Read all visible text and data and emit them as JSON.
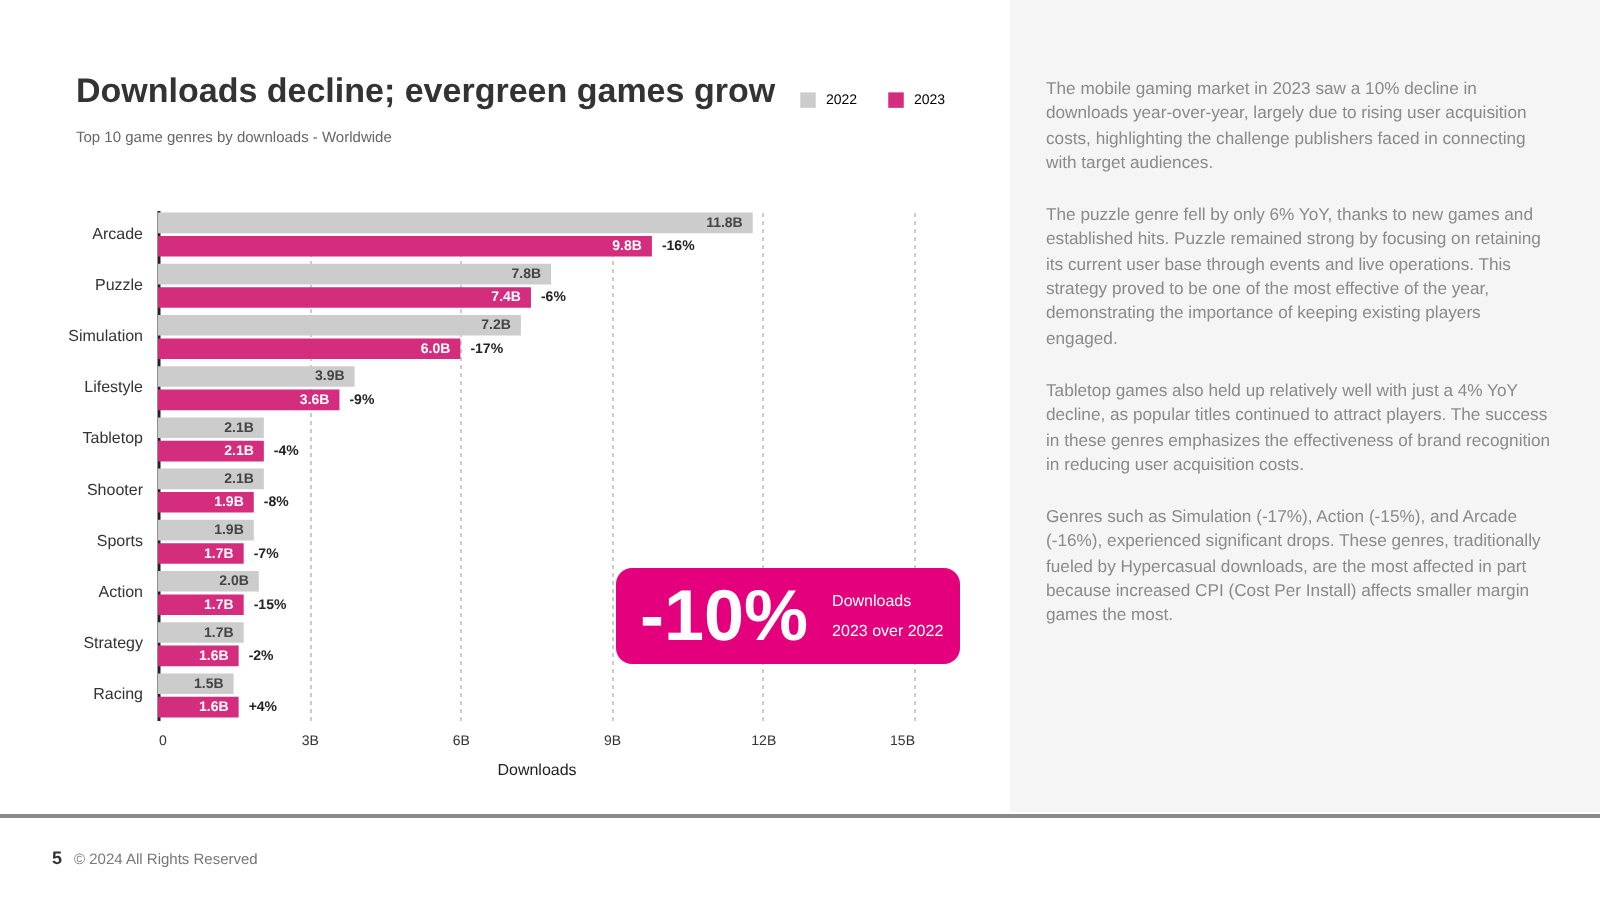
{
  "chart_data": {
    "type": "bar",
    "orientation": "horizontal",
    "title": "Downloads decline; evergreen games grow",
    "subtitle": "Top 10 game genres by downloads - Worldwide",
    "xlabel": "Downloads",
    "categories": [
      "Arcade",
      "Puzzle",
      "Simulation",
      "Lifestyle",
      "Tabletop",
      "Shooter",
      "Sports",
      "Action",
      "Strategy",
      "Racing"
    ],
    "series": [
      {
        "name": "2022",
        "color": "#cccccc",
        "values": [
          11.8,
          7.8,
          7.2,
          3.9,
          2.1,
          2.1,
          1.9,
          2.0,
          1.7,
          1.5
        ],
        "value_labels": [
          "11.8B",
          "7.8B",
          "7.2B",
          "3.9B",
          "2.1B",
          "2.1B",
          "1.9B",
          "2.0B",
          "1.7B",
          "1.5B"
        ]
      },
      {
        "name": "2023",
        "color": "#d42d7e",
        "values": [
          9.8,
          7.4,
          6.0,
          3.6,
          2.1,
          1.9,
          1.7,
          1.7,
          1.6,
          1.6
        ],
        "value_labels": [
          "9.8B",
          "7.4B",
          "6.0B",
          "3.6B",
          "2.1B",
          "1.9B",
          "1.7B",
          "1.7B",
          "1.6B",
          "1.6B"
        ]
      }
    ],
    "xlim": [
      0,
      15
    ],
    "xticks": [
      0,
      {
        "value": 3,
        "label": "3B"
      },
      {
        "value": 6,
        "label": "6B"
      },
      {
        "value": 9,
        "label": "9B"
      },
      {
        "value": 12,
        "label": "12B"
      },
      {
        "value": 15,
        "label": "15B"
      }
    ],
    "grid": "x",
    "legend": "top right",
    "annotations": [
      "-10%",
      "Downloads",
      "2023 over 2022",
      "The mobile gaming market in 2023 saw a 10% decline in downloads year-over-year, largely due to rising user acquisition costs, highlighting the challenge publishers faced in connecting with target audiences.",
      "The puzzle genre fell by only 6% YoY, thanks to new games and established hits. Puzzle remained strong by focusing on retaining its current user base through events and live operations. This strategy proved to be one of the most effective of the year, demonstrating the importance of keeping existing players engaged.",
      "Tabletop games also held up relatively well with just a 4% YoY decline, as popular titles continued to attract players. The success in these genres emphasizes the effectiveness of brand recognition in reducing user acquisition costs.",
      "Genres such as Simulation (-17%), Action (-15%), and Arcade (-16%), experienced significant drops. These genres, traditionally fueled by Hypercasual downloads, are the most affected in part because increased CPI (Cost Per Install) affects smaller margin games the most.",
      "5",
      "© 2024 All Rights Reserved",
      {
        "text": "-16%",
        "x": 9.8,
        "y": "Arcade"
      },
      {
        "text": "-6%",
        "x": 7.4,
        "y": "Puzzle"
      },
      {
        "text": "-17%",
        "x": 6.0,
        "y": "Simulation"
      },
      {
        "text": "-9%",
        "x": 3.6,
        "y": "Lifestyle"
      },
      {
        "text": "-4%",
        "x": 2.1,
        "y": "Tabletop"
      },
      {
        "text": "-8%",
        "x": 1.9,
        "y": "Shooter"
      },
      {
        "text": "-7%",
        "x": 1.7,
        "y": "Sports"
      },
      {
        "text": "-15%",
        "x": 1.7,
        "y": "Action"
      },
      {
        "text": "-2%",
        "x": 1.6,
        "y": "Strategy"
      },
      {
        "text": "+4%",
        "x": 1.6,
        "y": "Racing"
      }
    ]
  }
}
